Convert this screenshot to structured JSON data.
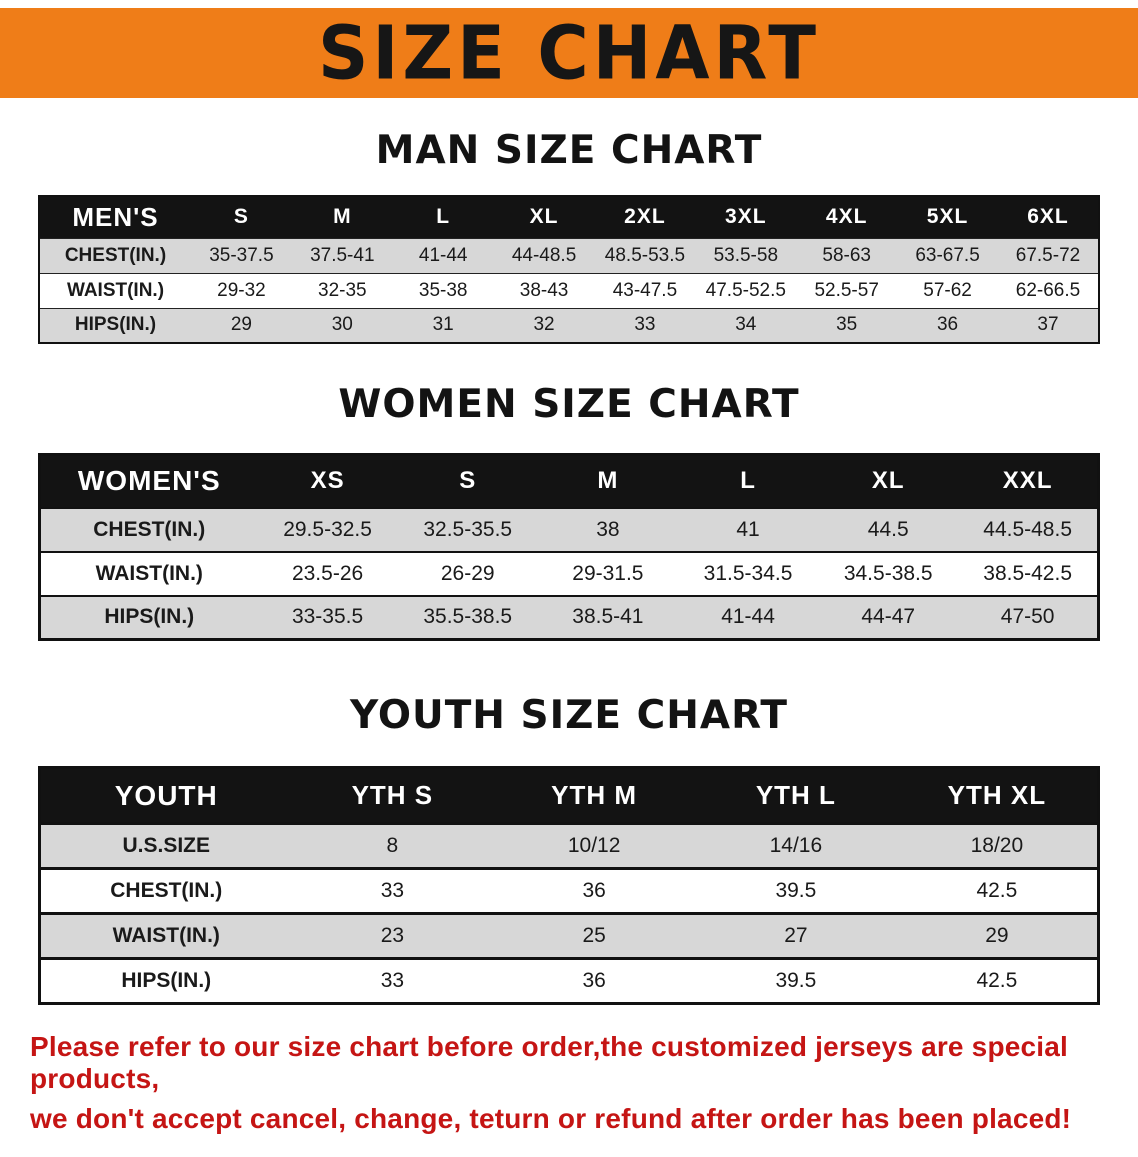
{
  "banner": {
    "title": "SIZE CHART",
    "bg_color": "#ef7d18",
    "text_color": "#161616"
  },
  "tables": {
    "men": {
      "title": "MAN SIZE CHART",
      "header": [
        "MEN'S",
        "S",
        "M",
        "L",
        "XL",
        "2XL",
        "3XL",
        "4XL",
        "5XL",
        "6XL"
      ],
      "rows": [
        {
          "label": "CHEST(IN.)",
          "values": [
            "35-37.5",
            "37.5-41",
            "41-44",
            "44-48.5",
            "48.5-53.5",
            "53.5-58",
            "58-63",
            "63-67.5",
            "67.5-72"
          ]
        },
        {
          "label": "WAIST(IN.)",
          "values": [
            "29-32",
            "32-35",
            "35-38",
            "38-43",
            "43-47.5",
            "47.5-52.5",
            "52.5-57",
            "57-62",
            "62-66.5"
          ]
        },
        {
          "label": "HIPS(IN.)",
          "values": [
            "29",
            "30",
            "31",
            "32",
            "33",
            "34",
            "35",
            "36",
            "37"
          ]
        }
      ]
    },
    "women": {
      "title": "WOMEN SIZE CHART",
      "header": [
        "WOMEN'S",
        "XS",
        "S",
        "M",
        "L",
        "XL",
        "XXL"
      ],
      "rows": [
        {
          "label": "CHEST(IN.)",
          "values": [
            "29.5-32.5",
            "32.5-35.5",
            "38",
            "41",
            "44.5",
            "44.5-48.5"
          ]
        },
        {
          "label": "WAIST(IN.)",
          "values": [
            "23.5-26",
            "26-29",
            "29-31.5",
            "31.5-34.5",
            "34.5-38.5",
            "38.5-42.5"
          ]
        },
        {
          "label": "HIPS(IN.)",
          "values": [
            "33-35.5",
            "35.5-38.5",
            "38.5-41",
            "41-44",
            "44-47",
            "47-50"
          ]
        }
      ]
    },
    "youth": {
      "title": "YOUTH SIZE CHART",
      "header": [
        "YOUTH",
        "YTH S",
        "YTH M",
        "YTH L",
        "YTH XL"
      ],
      "rows": [
        {
          "label": "U.S.SIZE",
          "values": [
            "8",
            "10/12",
            "14/16",
            "18/20"
          ]
        },
        {
          "label": "CHEST(IN.)",
          "values": [
            "33",
            "36",
            "39.5",
            "42.5"
          ]
        },
        {
          "label": "WAIST(IN.)",
          "values": [
            "23",
            "25",
            "27",
            "29"
          ]
        },
        {
          "label": "HIPS(IN.)",
          "values": [
            "33",
            "36",
            "39.5",
            "42.5"
          ]
        }
      ]
    }
  },
  "footer": {
    "line1": "Please refer to our size chart before order,the customized jerseys are special products,",
    "line2": "we don't accept cancel, change, teturn or refund after order has been placed!",
    "text_color": "#c51514"
  }
}
